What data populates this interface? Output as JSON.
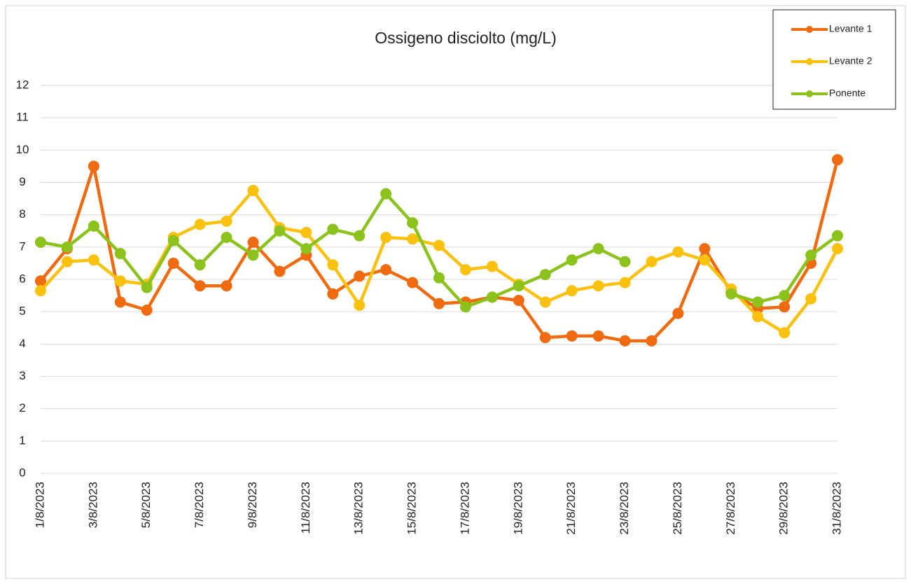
{
  "chart_data": {
    "type": "line",
    "title": "Ossigeno disciolto (mg/L)",
    "categories": [
      "1/8/2023",
      null,
      "3/8/2023",
      null,
      "5/8/2023",
      null,
      "7/8/2023",
      null,
      "9/8/2023",
      null,
      "11/8/2023",
      null,
      "13/8/2023",
      null,
      "15/8/2023",
      null,
      "17/8/2023",
      null,
      "19/8/2023",
      null,
      "21/8/2023",
      null,
      "23/8/2023",
      null,
      "25/8/2023",
      null,
      "27/8/2023",
      null,
      "29/8/2023",
      null,
      "31/8/2023"
    ],
    "series": [
      {
        "name": "Levante 1",
        "color": "#f06a10",
        "values": [
          5.95,
          6.95,
          9.5,
          5.3,
          5.05,
          6.5,
          5.8,
          5.8,
          7.15,
          6.25,
          6.75,
          5.55,
          6.1,
          6.3,
          5.9,
          5.25,
          5.3,
          5.45,
          5.35,
          4.2,
          4.25,
          4.25,
          4.1,
          4.1,
          4.95,
          6.95,
          5.6,
          5.1,
          5.15,
          6.5,
          9.7
        ]
      },
      {
        "name": "Levante 2",
        "color": "#fbc10f",
        "values": [
          5.65,
          6.55,
          6.6,
          5.95,
          5.85,
          7.3,
          7.7,
          7.8,
          8.75,
          7.6,
          7.45,
          6.45,
          5.2,
          7.3,
          7.25,
          7.05,
          6.3,
          6.4,
          5.85,
          5.3,
          5.65,
          5.8,
          5.9,
          6.55,
          6.85,
          6.6,
          5.7,
          4.85,
          4.35,
          5.4,
          6.95
        ]
      },
      {
        "name": "Ponente",
        "color": "#8cc21c",
        "values": [
          7.15,
          7.0,
          7.65,
          6.8,
          5.75,
          7.2,
          6.45,
          7.3,
          6.75,
          7.5,
          6.95,
          7.55,
          7.35,
          8.65,
          7.75,
          6.05,
          5.15,
          5.45,
          5.8,
          6.15,
          6.6,
          6.95,
          6.55,
          null,
          null,
          null,
          5.55,
          5.3,
          5.5,
          6.75,
          7.35
        ]
      }
    ],
    "ylim": [
      0,
      12
    ],
    "yticks": [
      0,
      1,
      2,
      3,
      4,
      5,
      6,
      7,
      8,
      9,
      10,
      11,
      12
    ],
    "grid": true,
    "legend": "top-right"
  }
}
